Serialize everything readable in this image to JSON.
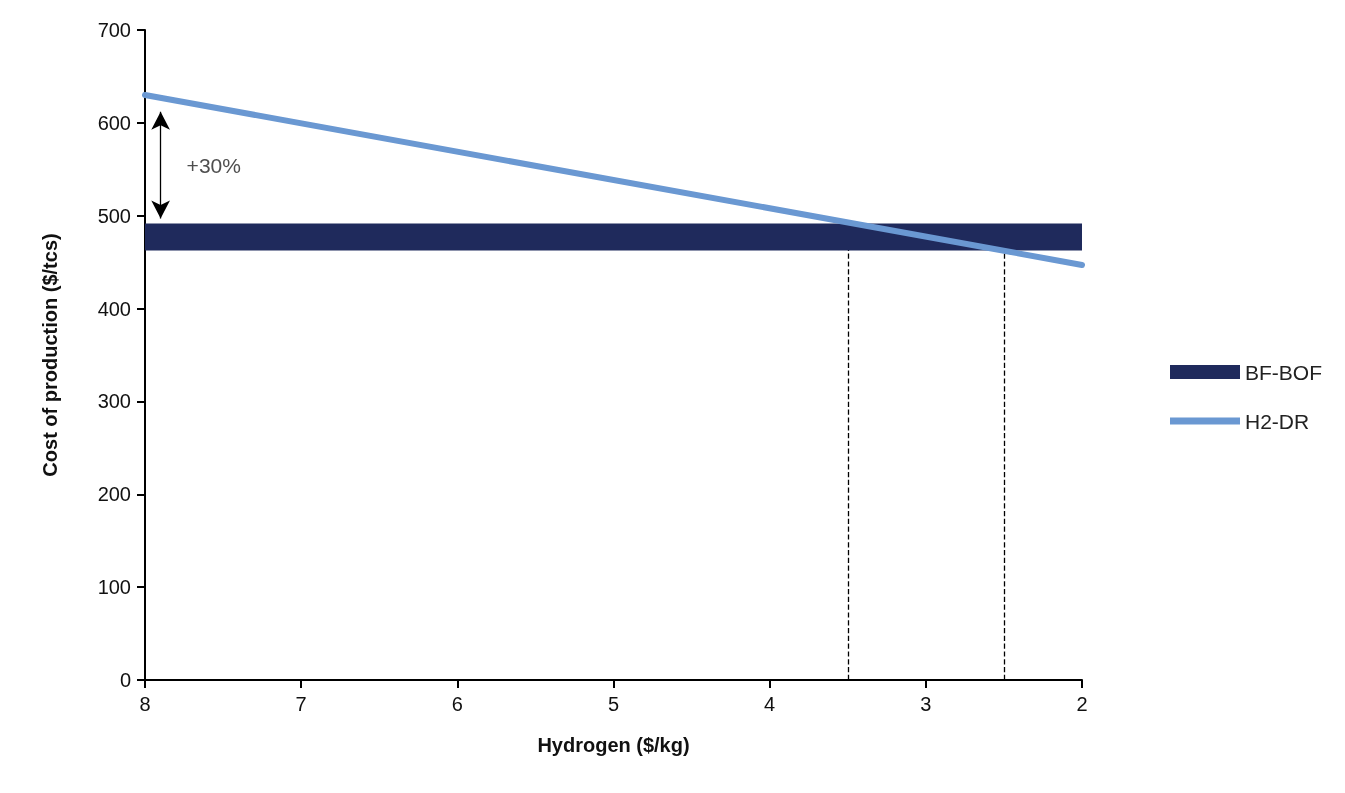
{
  "chart_data": {
    "type": "line",
    "xlabel": "Hydrogen ($/kg)",
    "ylabel": "Cost of production ($/tcs)",
    "x": [
      8,
      2
    ],
    "series": [
      {
        "name": "BF-BOF",
        "color": "#1f2a5c",
        "values": [
          477,
          477
        ]
      },
      {
        "name": "H2-DR",
        "color": "#6a98d2",
        "values": [
          630,
          447
        ]
      }
    ],
    "xlim": [
      8,
      2
    ],
    "xticks": [
      8,
      7,
      6,
      5,
      4,
      3,
      2
    ],
    "ylim": [
      0,
      700
    ],
    "yticks": [
      0,
      100,
      200,
      300,
      400,
      500,
      600,
      700
    ],
    "ref_lines": [
      {
        "axis": "x",
        "value": 3.5,
        "color": "#000000",
        "line_style": "dashed"
      },
      {
        "axis": "x",
        "value": 2.5,
        "color": "#000000",
        "line_style": "dashed"
      }
    ],
    "annotations": [
      "+30%"
    ],
    "legend": "right",
    "grid": false,
    "marker": "none",
    "line_style": "solid"
  }
}
